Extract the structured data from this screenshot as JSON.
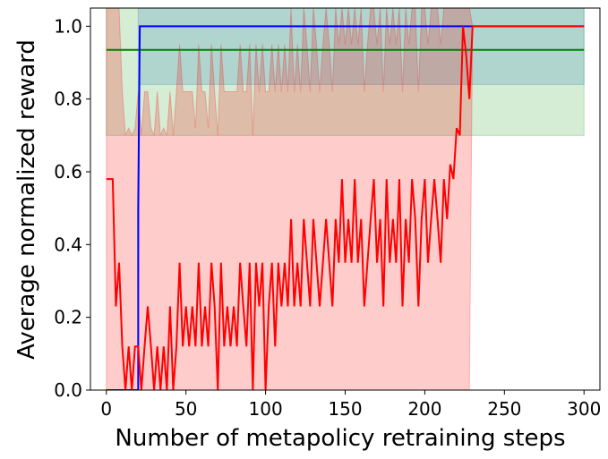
{
  "chart_data": {
    "type": "line",
    "xlabel": "Number of metapolicy retraining steps",
    "ylabel": "Average normalized reward",
    "xlim": [
      -10,
      310
    ],
    "ylim": [
      0.0,
      1.05
    ],
    "xticks": [
      0,
      50,
      100,
      150,
      200,
      250,
      300
    ],
    "xtick_labels": [
      "0",
      "50",
      "100",
      "150",
      "200",
      "250",
      "300"
    ],
    "yticks": [
      0.0,
      0.2,
      0.4,
      0.6,
      0.8,
      1.0
    ],
    "ytick_labels": [
      "0.0",
      "0.2",
      "0.4",
      "0.6",
      "0.8",
      "1.0"
    ],
    "grid": false,
    "series": [
      {
        "color": "#008000",
        "band_color": "#2ca02c",
        "x": [
          0,
          300
        ],
        "y": [
          0.935,
          0.935
        ],
        "band_upper": [
          1.05,
          1.05
        ],
        "band_lower": [
          0.7,
          0.7
        ]
      },
      {
        "color": "#0000ff",
        "band_color": "#1f77b4",
        "x": [
          0,
          20,
          20,
          21,
          300
        ],
        "y": [
          0.0,
          0.0,
          0.5,
          1.0,
          1.0
        ],
        "band_upper": [
          0.0,
          0.0,
          1.05,
          1.05,
          1.05
        ],
        "band_lower": [
          0.0,
          0.0,
          0.0,
          0.84,
          0.84
        ]
      },
      {
        "color": "#ff0000",
        "band_color": "#ff0000",
        "x": [
          0,
          2,
          4,
          6,
          8,
          10,
          12,
          14,
          16,
          18,
          20,
          22,
          24,
          26,
          28,
          30,
          32,
          34,
          36,
          38,
          40,
          42,
          44,
          46,
          48,
          50,
          52,
          54,
          56,
          58,
          60,
          62,
          64,
          66,
          68,
          70,
          72,
          74,
          76,
          78,
          80,
          82,
          84,
          86,
          88,
          90,
          92,
          94,
          96,
          98,
          100,
          102,
          104,
          106,
          108,
          110,
          112,
          114,
          116,
          118,
          120,
          122,
          124,
          126,
          128,
          130,
          132,
          134,
          136,
          138,
          140,
          142,
          144,
          146,
          148,
          150,
          152,
          154,
          156,
          158,
          160,
          162,
          164,
          166,
          168,
          170,
          172,
          174,
          176,
          178,
          180,
          182,
          184,
          186,
          188,
          190,
          192,
          194,
          196,
          198,
          200,
          202,
          204,
          206,
          208,
          210,
          212,
          214,
          216,
          218,
          220,
          222,
          224,
          226,
          228,
          230,
          250,
          275,
          300
        ],
        "y": [
          0.58,
          0.58,
          0.58,
          0.23,
          0.35,
          0.12,
          0.0,
          0.12,
          0.0,
          0.12,
          0.12,
          0.0,
          0.12,
          0.23,
          0.12,
          0.0,
          0.12,
          0.0,
          0.12,
          0.0,
          0.23,
          0.0,
          0.12,
          0.35,
          0.12,
          0.23,
          0.12,
          0.23,
          0.12,
          0.35,
          0.12,
          0.23,
          0.12,
          0.35,
          0.23,
          0.0,
          0.35,
          0.12,
          0.23,
          0.12,
          0.23,
          0.12,
          0.35,
          0.23,
          0.12,
          0.35,
          0.0,
          0.35,
          0.23,
          0.35,
          0.0,
          0.23,
          0.35,
          0.12,
          0.35,
          0.23,
          0.35,
          0.23,
          0.47,
          0.23,
          0.35,
          0.23,
          0.47,
          0.35,
          0.23,
          0.47,
          0.35,
          0.23,
          0.35,
          0.47,
          0.35,
          0.23,
          0.47,
          0.35,
          0.58,
          0.35,
          0.47,
          0.35,
          0.58,
          0.35,
          0.47,
          0.23,
          0.35,
          0.47,
          0.58,
          0.35,
          0.47,
          0.23,
          0.58,
          0.35,
          0.47,
          0.35,
          0.58,
          0.23,
          0.47,
          0.35,
          0.58,
          0.47,
          0.23,
          0.47,
          0.58,
          0.35,
          0.47,
          0.58,
          0.47,
          0.35,
          0.58,
          0.47,
          0.62,
          0.58,
          0.72,
          0.7,
          1.0,
          0.92,
          0.8,
          1.0,
          1.0,
          1.0,
          1.0
        ],
        "band_upper": [
          1.05,
          1.05,
          1.05,
          1.05,
          1.05,
          0.82,
          0.7,
          0.72,
          0.7,
          0.72,
          0.82,
          0.7,
          0.82,
          0.82,
          0.72,
          0.7,
          0.82,
          0.7,
          0.72,
          0.7,
          0.82,
          0.7,
          0.82,
          0.95,
          0.82,
          0.82,
          0.82,
          0.82,
          0.72,
          0.95,
          0.82,
          0.82,
          0.72,
          0.95,
          0.82,
          0.7,
          0.95,
          0.82,
          0.82,
          0.82,
          0.82,
          0.82,
          0.95,
          0.82,
          0.82,
          0.95,
          0.7,
          0.95,
          0.82,
          0.95,
          0.82,
          0.82,
          0.95,
          0.82,
          0.95,
          0.82,
          0.95,
          0.82,
          1.05,
          0.82,
          0.95,
          0.82,
          1.05,
          0.95,
          0.82,
          1.05,
          0.95,
          0.82,
          0.95,
          1.05,
          0.95,
          0.82,
          1.05,
          0.95,
          1.05,
          0.95,
          1.05,
          0.95,
          1.05,
          0.95,
          1.05,
          0.82,
          0.95,
          1.05,
          1.05,
          0.95,
          1.05,
          0.82,
          1.05,
          0.95,
          1.05,
          0.95,
          1.05,
          0.82,
          1.05,
          0.95,
          1.05,
          1.05,
          0.82,
          1.05,
          1.05,
          0.95,
          1.05,
          1.05,
          1.05,
          0.95,
          1.05,
          1.05,
          1.05,
          1.05,
          1.05,
          1.05,
          1.05,
          1.05,
          1.05,
          1.0,
          1.0,
          1.0,
          1.0
        ],
        "band_lower": [
          0.0,
          0.0,
          0.0,
          0.0,
          0.0,
          0.0,
          0.0,
          0.0,
          0.0,
          0.0,
          0.0,
          0.0,
          0.0,
          0.0,
          0.0,
          0.0,
          0.0,
          0.0,
          0.0,
          0.0,
          0.0,
          0.0,
          0.0,
          0.0,
          0.0,
          0.0,
          0.0,
          0.0,
          0.0,
          0.0,
          0.0,
          0.0,
          0.0,
          0.0,
          0.0,
          0.0,
          0.0,
          0.0,
          0.0,
          0.0,
          0.0,
          0.0,
          0.0,
          0.0,
          0.0,
          0.0,
          0.0,
          0.0,
          0.0,
          0.0,
          0.0,
          0.0,
          0.0,
          0.0,
          0.0,
          0.0,
          0.0,
          0.0,
          0.0,
          0.0,
          0.0,
          0.0,
          0.0,
          0.0,
          0.0,
          0.0,
          0.0,
          0.0,
          0.0,
          0.0,
          0.0,
          0.0,
          0.0,
          0.0,
          0.0,
          0.0,
          0.0,
          0.0,
          0.0,
          0.0,
          0.0,
          0.0,
          0.0,
          0.0,
          0.0,
          0.0,
          0.0,
          0.0,
          0.0,
          0.0,
          0.0,
          0.0,
          0.0,
          0.0,
          0.0,
          0.0,
          0.0,
          0.0,
          0.0,
          0.0,
          0.0,
          0.0,
          0.0,
          0.0,
          0.0,
          0.0,
          0.0,
          0.0,
          0.0,
          0.0,
          0.0,
          0.0,
          0.0,
          0.0,
          0.0,
          1.0,
          1.0,
          1.0,
          1.0
        ]
      }
    ]
  }
}
